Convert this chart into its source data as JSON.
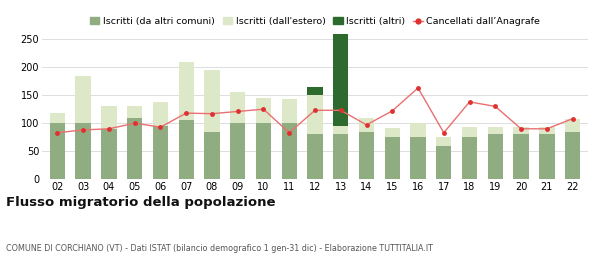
{
  "years": [
    "02",
    "03",
    "04",
    "05",
    "06",
    "07",
    "08",
    "09",
    "10",
    "11",
    "12",
    "13",
    "14",
    "15",
    "16",
    "17",
    "18",
    "19",
    "20",
    "21",
    "22"
  ],
  "iscritti_altri_comuni": [
    100,
    100,
    90,
    110,
    95,
    105,
    85,
    100,
    100,
    100,
    80,
    80,
    85,
    75,
    75,
    60,
    75,
    80,
    80,
    80,
    85
  ],
  "iscritti_estero": [
    18,
    85,
    40,
    20,
    43,
    105,
    110,
    55,
    45,
    43,
    70,
    15,
    25,
    17,
    25,
    15,
    18,
    13,
    13,
    13,
    22
  ],
  "iscritti_altri": [
    0,
    0,
    0,
    0,
    0,
    0,
    0,
    0,
    0,
    0,
    15,
    165,
    0,
    0,
    0,
    0,
    0,
    0,
    0,
    0,
    0
  ],
  "cancellati": [
    83,
    88,
    90,
    100,
    93,
    118,
    117,
    121,
    125,
    83,
    123,
    123,
    97,
    122,
    163,
    83,
    138,
    130,
    90,
    90,
    108
  ],
  "color_altri_comuni": "#8fad80",
  "color_estero": "#dce8c8",
  "color_altri": "#2d6a2d",
  "color_cancellati": "#e03030",
  "color_cancellati_line": "#e87070",
  "ylim": [
    0,
    260
  ],
  "yticks": [
    0,
    50,
    100,
    150,
    200,
    250
  ],
  "title": "Flusso migratorio della popolazione",
  "subtitle": "COMUNE DI CORCHIANO (VT) - Dati ISTAT (bilancio demografico 1 gen-31 dic) - Elaborazione TUTTITALIA.IT",
  "legend_labels": [
    "Iscritti (da altri comuni)",
    "Iscritti (dall'estero)",
    "Iscritti (altri)",
    "Cancellati dall’Anagrafe"
  ],
  "grid_color": "#dddddd",
  "background_color": "#ffffff"
}
